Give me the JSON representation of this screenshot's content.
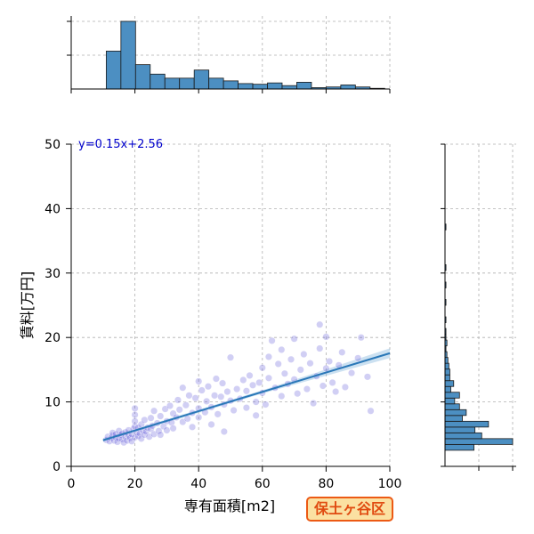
{
  "chart_data": {
    "type": "scatter",
    "xlabel": "専有面積[m2]",
    "ylabel": "賃料[万円]",
    "xlim": [
      0,
      100
    ],
    "ylim": [
      0,
      50
    ],
    "x_ticks": [
      0,
      20,
      40,
      60,
      80,
      100
    ],
    "y_ticks": [
      0,
      10,
      20,
      30,
      40,
      50
    ],
    "grid": true,
    "regression": {
      "equation": "y=0.15x+2.56",
      "slope": 0.15,
      "intercept": 2.56,
      "x_range": [
        10,
        100
      ]
    },
    "marginal_x_hist": {
      "bin_width": 4.6,
      "bins_start": 11.0,
      "counts": [
        56,
        100,
        36,
        22,
        16,
        16,
        28,
        16,
        12,
        8,
        7,
        9,
        5,
        10,
        2,
        3,
        6,
        3,
        1
      ]
    },
    "marginal_y_hist": {
      "bin_width": 0.9,
      "bins_start": 2.5,
      "counts": [
        30,
        70,
        38,
        31,
        45,
        18,
        22,
        15,
        10,
        15,
        6,
        9,
        5,
        5,
        4,
        3,
        2,
        1,
        2,
        1,
        1,
        0,
        1,
        0,
        0,
        1,
        0,
        0,
        1,
        0,
        0,
        1,
        0,
        0,
        0,
        0,
        0,
        0,
        1
      ]
    },
    "scatter_points": [
      [
        11,
        4.1
      ],
      [
        11.5,
        4.6
      ],
      [
        12,
        3.9
      ],
      [
        12.5,
        4.4
      ],
      [
        13,
        4.8
      ],
      [
        13,
        5.2
      ],
      [
        13.5,
        4.0
      ],
      [
        14,
        4.5
      ],
      [
        14,
        5.0
      ],
      [
        14.5,
        3.8
      ],
      [
        15,
        4.3
      ],
      [
        15,
        5.5
      ],
      [
        15.5,
        4.9
      ],
      [
        16,
        4.2
      ],
      [
        16,
        5.1
      ],
      [
        16.5,
        3.7
      ],
      [
        17,
        4.6
      ],
      [
        17,
        5.3
      ],
      [
        17.5,
        4.0
      ],
      [
        18,
        4.8
      ],
      [
        18,
        5.6
      ],
      [
        18.5,
        4.4
      ],
      [
        19,
        3.9
      ],
      [
        19,
        5.0
      ],
      [
        19.5,
        5.8
      ],
      [
        20,
        4.5
      ],
      [
        20,
        6.2
      ],
      [
        20,
        7.0
      ],
      [
        20,
        8.0
      ],
      [
        20,
        9.0
      ],
      [
        20.5,
        5.3
      ],
      [
        21,
        4.7
      ],
      [
        21,
        6.0
      ],
      [
        21.5,
        5.1
      ],
      [
        22,
        4.3
      ],
      [
        22,
        6.5
      ],
      [
        22.5,
        5.6
      ],
      [
        23,
        4.9
      ],
      [
        23,
        7.2
      ],
      [
        23.5,
        5.4
      ],
      [
        24,
        6.0
      ],
      [
        24.5,
        4.6
      ],
      [
        25,
        5.8
      ],
      [
        25,
        7.5
      ],
      [
        25.5,
        6.3
      ],
      [
        26,
        5.0
      ],
      [
        26,
        8.6
      ],
      [
        27,
        6.7
      ],
      [
        27.5,
        5.5
      ],
      [
        28,
        7.8
      ],
      [
        28,
        4.9
      ],
      [
        29,
        6.2
      ],
      [
        29.5,
        8.9
      ],
      [
        30,
        7.0
      ],
      [
        30,
        5.6
      ],
      [
        31,
        9.4
      ],
      [
        31.5,
        6.8
      ],
      [
        32,
        8.2
      ],
      [
        32,
        5.9
      ],
      [
        33,
        7.6
      ],
      [
        33.5,
        10.3
      ],
      [
        34,
        8.8
      ],
      [
        35,
        6.9
      ],
      [
        35,
        12.2
      ],
      [
        36,
        9.5
      ],
      [
        36.5,
        7.4
      ],
      [
        37,
        11.0
      ],
      [
        38,
        8.3
      ],
      [
        38,
        6.1
      ],
      [
        39,
        10.6
      ],
      [
        40,
        9.0
      ],
      [
        40,
        13.2
      ],
      [
        40,
        7.6
      ],
      [
        41,
        11.8
      ],
      [
        42,
        8.4
      ],
      [
        42.5,
        10.1
      ],
      [
        43,
        12.4
      ],
      [
        44,
        9.2
      ],
      [
        44,
        6.5
      ],
      [
        45,
        11.0
      ],
      [
        45.5,
        13.6
      ],
      [
        46,
        8.1
      ],
      [
        47,
        10.8
      ],
      [
        47.5,
        12.9
      ],
      [
        48,
        9.6
      ],
      [
        48,
        5.4
      ],
      [
        49,
        11.6
      ],
      [
        50,
        10.2
      ],
      [
        50,
        16.9
      ],
      [
        51,
        8.7
      ],
      [
        52,
        12.0
      ],
      [
        53,
        10.5
      ],
      [
        54,
        13.4
      ],
      [
        55,
        9.1
      ],
      [
        55,
        11.7
      ],
      [
        56,
        14.1
      ],
      [
        57,
        12.6
      ],
      [
        58,
        10.0
      ],
      [
        58,
        7.9
      ],
      [
        59,
        13.0
      ],
      [
        60,
        11.4
      ],
      [
        60,
        15.3
      ],
      [
        61,
        9.6
      ],
      [
        62,
        17.0
      ],
      [
        62,
        13.7
      ],
      [
        63,
        19.5
      ],
      [
        64,
        12.2
      ],
      [
        65,
        15.9
      ],
      [
        66,
        10.9
      ],
      [
        66,
        18.1
      ],
      [
        67,
        14.4
      ],
      [
        68,
        12.8
      ],
      [
        69,
        16.6
      ],
      [
        70,
        13.5
      ],
      [
        70,
        19.8
      ],
      [
        71,
        11.3
      ],
      [
        72,
        15.0
      ],
      [
        73,
        17.4
      ],
      [
        74,
        12.0
      ],
      [
        75,
        16.0
      ],
      [
        76,
        9.8
      ],
      [
        77,
        14.0
      ],
      [
        78,
        22.0
      ],
      [
        78,
        18.3
      ],
      [
        79,
        12.5
      ],
      [
        80,
        15.2
      ],
      [
        80,
        20.1
      ],
      [
        81,
        16.3
      ],
      [
        82,
        13.0
      ],
      [
        83,
        11.6
      ],
      [
        84,
        15.7
      ],
      [
        85,
        17.7
      ],
      [
        86,
        12.3
      ],
      [
        88,
        14.5
      ],
      [
        90,
        16.8
      ],
      [
        91,
        20.0
      ],
      [
        93,
        13.9
      ],
      [
        94,
        8.6
      ]
    ]
  }
}
